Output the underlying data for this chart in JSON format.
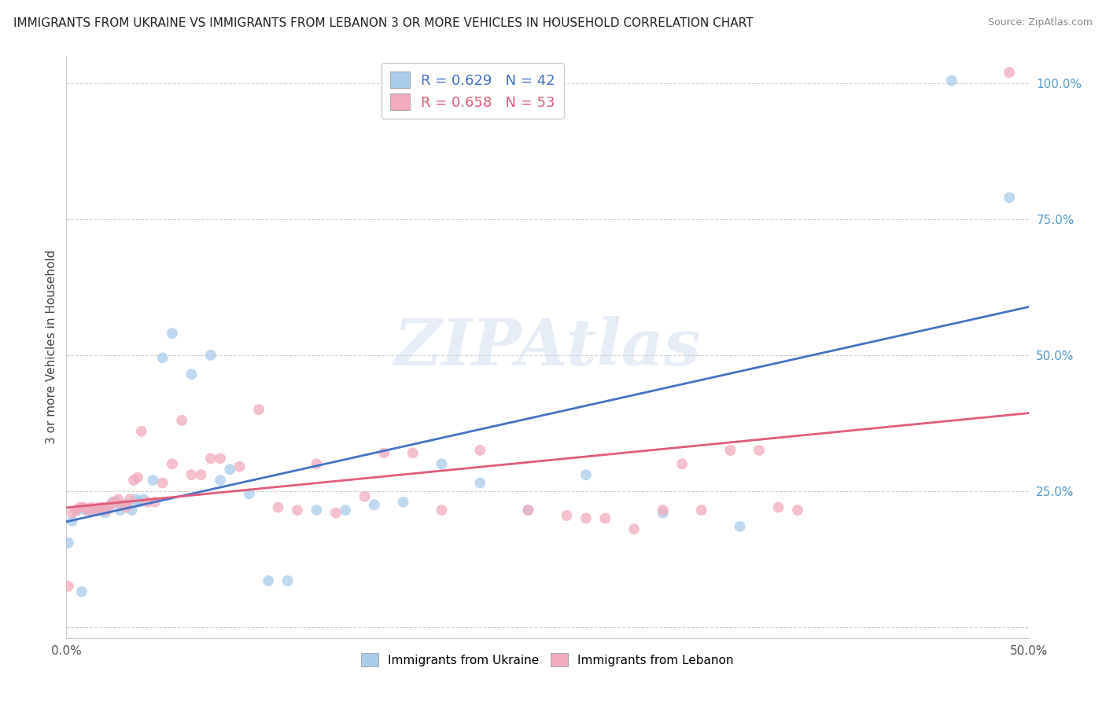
{
  "title": "IMMIGRANTS FROM UKRAINE VS IMMIGRANTS FROM LEBANON 3 OR MORE VEHICLES IN HOUSEHOLD CORRELATION CHART",
  "source": "Source: ZipAtlas.com",
  "ylabel": "3 or more Vehicles in Household",
  "xlim": [
    0.0,
    0.5
  ],
  "ylim": [
    -0.02,
    1.05
  ],
  "yticks_right": [
    0.0,
    0.25,
    0.5,
    0.75,
    1.0
  ],
  "yticklabels_right": [
    "",
    "25.0%",
    "50.0%",
    "75.0%",
    "100.0%"
  ],
  "ukraine_color": "#A8CCEA",
  "lebanon_color": "#F2ABBE",
  "ukraine_line_color": "#4472C4",
  "lebanon_line_color": "#E05C7A",
  "legend_ukraine_R": "0.629",
  "legend_ukraine_N": "42",
  "legend_lebanon_R": "0.658",
  "legend_lebanon_N": "53",
  "watermark": "ZIPAtlas",
  "background_color": "#ffffff",
  "grid_color": "#d0d0d0",
  "ukraine_x": [
    0.001,
    0.003,
    0.006,
    0.008,
    0.01,
    0.012,
    0.014,
    0.016,
    0.018,
    0.02,
    0.022,
    0.024,
    0.026,
    0.028,
    0.03,
    0.032,
    0.034,
    0.036,
    0.038,
    0.04,
    0.045,
    0.05,
    0.055,
    0.065,
    0.075,
    0.08,
    0.085,
    0.095,
    0.105,
    0.115,
    0.13,
    0.145,
    0.16,
    0.175,
    0.195,
    0.215,
    0.24,
    0.27,
    0.31,
    0.35,
    0.46,
    0.49
  ],
  "ukraine_y": [
    0.155,
    0.195,
    0.215,
    0.065,
    0.215,
    0.215,
    0.215,
    0.215,
    0.215,
    0.21,
    0.22,
    0.23,
    0.23,
    0.215,
    0.225,
    0.225,
    0.215,
    0.235,
    0.23,
    0.235,
    0.27,
    0.495,
    0.54,
    0.465,
    0.5,
    0.27,
    0.29,
    0.245,
    0.085,
    0.085,
    0.215,
    0.215,
    0.225,
    0.23,
    0.3,
    0.265,
    0.215,
    0.28,
    0.21,
    0.185,
    1.005,
    0.79
  ],
  "lebanon_x": [
    0.001,
    0.003,
    0.005,
    0.007,
    0.009,
    0.011,
    0.013,
    0.015,
    0.017,
    0.019,
    0.021,
    0.023,
    0.025,
    0.027,
    0.029,
    0.031,
    0.033,
    0.035,
    0.037,
    0.039,
    0.042,
    0.046,
    0.05,
    0.055,
    0.06,
    0.065,
    0.07,
    0.075,
    0.08,
    0.09,
    0.1,
    0.11,
    0.12,
    0.13,
    0.14,
    0.155,
    0.165,
    0.18,
    0.195,
    0.215,
    0.24,
    0.26,
    0.27,
    0.28,
    0.295,
    0.31,
    0.32,
    0.33,
    0.345,
    0.36,
    0.37,
    0.38,
    0.49
  ],
  "lebanon_y": [
    0.075,
    0.21,
    0.215,
    0.22,
    0.22,
    0.215,
    0.22,
    0.215,
    0.22,
    0.22,
    0.215,
    0.225,
    0.23,
    0.235,
    0.225,
    0.22,
    0.235,
    0.27,
    0.275,
    0.36,
    0.23,
    0.23,
    0.265,
    0.3,
    0.38,
    0.28,
    0.28,
    0.31,
    0.31,
    0.295,
    0.4,
    0.22,
    0.215,
    0.3,
    0.21,
    0.24,
    0.32,
    0.32,
    0.215,
    0.325,
    0.215,
    0.205,
    0.2,
    0.2,
    0.18,
    0.215,
    0.3,
    0.215,
    0.325,
    0.325,
    0.22,
    0.215,
    1.02
  ]
}
